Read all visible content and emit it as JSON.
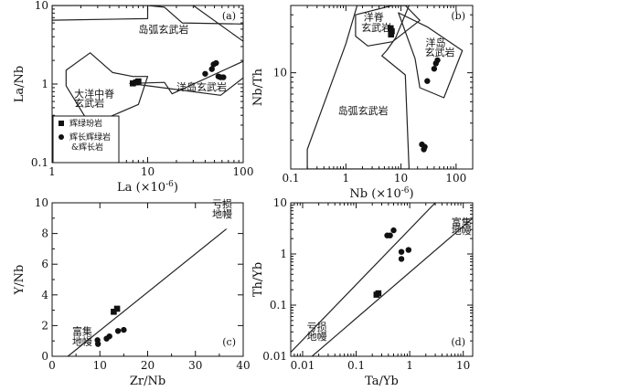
{
  "chart_data": [
    {
      "id": "a",
      "type": "scatter",
      "panel_label": "(a)",
      "xlabel": "La (×10",
      "xlabel_exp": "-6",
      "xlabel_close": ")",
      "ylabel": "La/Nb",
      "xscale": "log",
      "yscale": "log",
      "xlim": [
        1,
        100
      ],
      "ylim": [
        0.1,
        10
      ],
      "xticks": [
        1,
        10,
        100
      ],
      "xtick_labels": [
        "1",
        "10",
        "100"
      ],
      "yticks": [
        0.1,
        1,
        10
      ],
      "ytick_labels": [
        "0.1",
        "1",
        "10"
      ],
      "fields": [
        {
          "label": "岛弧玄武岩",
          "points": [
            [
              1,
              6.5
            ],
            [
              1,
              10
            ],
            [
              30,
              10
            ],
            [
              100,
              3.5
            ],
            [
              100,
              5.8
            ],
            [
              23,
              6
            ],
            [
              15,
              9.5
            ],
            [
              10,
              10
            ],
            [
              10,
              6.8
            ]
          ]
        },
        {
          "label": "大洋中脊玄武岩",
          "points": [
            [
              1.4,
              1.5
            ],
            [
              2.5,
              2.5
            ],
            [
              4.3,
              1.4
            ],
            [
              7,
              1.25
            ],
            [
              10,
              1.25
            ],
            [
              8,
              0.55
            ],
            [
              2.5,
              0.3
            ],
            [
              1.4,
              0.95
            ]
          ]
        },
        {
          "label": "洋岛玄武岩",
          "points": [
            [
              6.5,
              1.02
            ],
            [
              15,
              1.05
            ],
            [
              18,
              0.75
            ],
            [
              100,
              1.95
            ],
            [
              100,
              1.2
            ],
            [
              58,
              0.72
            ],
            [
              10,
              0.95
            ]
          ]
        }
      ],
      "labels": [
        {
          "text": "岛弧玄武岩",
          "at": [
            8,
            4.5
          ]
        },
        {
          "text": "大洋中脊",
          "at": [
            1.7,
            0.68
          ]
        },
        {
          "text": "玄武岩",
          "at": [
            1.7,
            0.52
          ]
        },
        {
          "text": "洋岛玄武岩",
          "at": [
            20,
            0.83
          ]
        }
      ],
      "series": [
        {
          "name": "辉绿玢岩",
          "marker": "square",
          "points": [
            [
              7,
              1.02
            ],
            [
              7.6,
              1.05
            ],
            [
              8,
              1.08
            ]
          ]
        },
        {
          "name": "辉长辉绿岩&辉长岩",
          "marker": "circle",
          "points": [
            [
              40,
              1.35
            ],
            [
              47,
              1.55
            ],
            [
              49,
              1.78
            ],
            [
              52,
              1.85
            ],
            [
              55,
              1.25
            ],
            [
              58,
              1.22
            ],
            [
              62,
              1.22
            ]
          ]
        }
      ],
      "legend": {
        "entries": [
          {
            "marker": "square",
            "lines": [
              "辉绿玢岩"
            ]
          },
          {
            "marker": "circle",
            "lines": [
              "辉长辉绿岩",
              "&辉长岩"
            ]
          }
        ]
      }
    },
    {
      "id": "b",
      "type": "scatter",
      "panel_label": "(b)",
      "xlabel": "Nb (×10",
      "xlabel_exp": "-6",
      "xlabel_close": ")",
      "ylabel": "Nb/Th",
      "xscale": "log",
      "yscale": "log",
      "xlim": [
        0.1,
        200
      ],
      "ylim": [
        1,
        50
      ],
      "xticks": [
        0.1,
        1,
        10,
        100
      ],
      "xtick_labels": [
        "0.1",
        "1",
        "10",
        "100"
      ],
      "yticks": [
        10
      ],
      "ytick_labels": [
        "10"
      ],
      "fields": [
        {
          "label": "岛弧玄武岩",
          "points": [
            [
              0.2,
              1
            ],
            [
              0.2,
              1.6
            ],
            [
              1,
              20
            ],
            [
              1.6,
              50
            ],
            [
              14,
              50
            ],
            [
              8,
              23
            ],
            [
              5.5,
              17
            ],
            [
              4.5,
              15
            ],
            [
              12,
              9.5
            ],
            [
              14,
              1
            ]
          ]
        },
        {
          "label": "洋脊玄武岩",
          "points": [
            [
              1.5,
              40
            ],
            [
              7,
              50
            ],
            [
              12,
              50
            ],
            [
              22,
              35
            ],
            [
              7,
              21
            ],
            [
              2.5,
              19
            ],
            [
              1.5,
              24
            ]
          ]
        },
        {
          "label": "洋岛玄武岩",
          "points": [
            [
              9,
              42
            ],
            [
              30,
              30
            ],
            [
              130,
              17
            ],
            [
              60,
              5.5
            ],
            [
              22,
              7
            ],
            [
              18,
              14
            ]
          ]
        }
      ],
      "labels": [
        {
          "text": "洋脊",
          "at": [
            2.1,
            35
          ]
        },
        {
          "text": "玄武岩",
          "at": [
            1.9,
            27
          ]
        },
        {
          "text": "洋岛",
          "at": [
            28,
            19
          ]
        },
        {
          "text": "玄武岩",
          "at": [
            27,
            15
          ]
        },
        {
          "text": "岛弧玄武岩",
          "at": [
            0.72,
            3.7
          ]
        }
      ],
      "series": [
        {
          "name": "辉绿玢岩",
          "marker": "square",
          "points": [
            [
              6.5,
              29
            ],
            [
              6.8,
              27
            ],
            [
              6.6,
              25
            ]
          ]
        },
        {
          "name": "辉长辉绿岩&辉长岩",
          "marker": "circle",
          "points": [
            [
              30,
              8.2
            ],
            [
              40,
              11
            ],
            [
              43,
              12.5
            ],
            [
              46,
              13.5
            ],
            [
              24,
              1.8
            ],
            [
              27,
              1.7
            ],
            [
              26,
              1.6
            ]
          ]
        }
      ]
    },
    {
      "id": "c",
      "type": "scatter",
      "panel_label": "(c)",
      "xlabel": "Zr/Nb",
      "ylabel": "Y/Nb",
      "xscale": "linear",
      "yscale": "linear",
      "xlim": [
        0,
        40
      ],
      "ylim": [
        0,
        10
      ],
      "xticks": [
        0,
        10,
        20,
        30,
        40
      ],
      "xtick_labels": [
        "0",
        "10",
        "20",
        "30",
        "40"
      ],
      "yticks": [
        0,
        2,
        4,
        6,
        8,
        10
      ],
      "ytick_labels": [
        "0",
        "2",
        "4",
        "6",
        "8",
        "10"
      ],
      "lines": [
        [
          [
            3.3,
            0
          ],
          [
            36.5,
            8.3
          ]
        ]
      ],
      "labels": [
        {
          "text": "亏损",
          "at": [
            33.5,
            9.7
          ]
        },
        {
          "text": "地幔",
          "at": [
            33.5,
            9.05
          ]
        },
        {
          "text": "富集",
          "at": [
            4.2,
            1.4
          ]
        },
        {
          "text": "地幔",
          "at": [
            4.2,
            0.75
          ]
        }
      ],
      "series": [
        {
          "name": "辉绿玢岩",
          "marker": "square",
          "points": [
            [
              12.9,
              2.9
            ],
            [
              13.6,
              3.1
            ]
          ]
        },
        {
          "name": "辉长辉绿岩&辉长岩",
          "marker": "circle",
          "points": [
            [
              9.5,
              1.05
            ],
            [
              9.6,
              0.8
            ],
            [
              11.4,
              1.15
            ],
            [
              12,
              1.3
            ],
            [
              13.8,
              1.65
            ],
            [
              15,
              1.72
            ]
          ]
        }
      ]
    },
    {
      "id": "d",
      "type": "scatter",
      "panel_label": "(d)",
      "xlabel": "Ta/Yb",
      "ylabel": "Th/Yb",
      "xscale": "log",
      "yscale": "log",
      "xlim": [
        0.006,
        15
      ],
      "ylim": [
        0.01,
        10
      ],
      "xticks": [
        0.01,
        0.1,
        1,
        10
      ],
      "xtick_labels": [
        "0.01",
        "0.1",
        "1",
        "10"
      ],
      "yticks": [
        0.01,
        0.1,
        1,
        10
      ],
      "ytick_labels": [
        "0.01",
        "0.1",
        "1",
        "10"
      ],
      "lines": [
        [
          [
            0.006,
            0.012
          ],
          [
            3,
            10
          ]
        ],
        [
          [
            0.015,
            0.01
          ],
          [
            15,
            5
          ]
        ]
      ],
      "labels": [
        {
          "text": "富集",
          "at": [
            6.0,
            3.6
          ]
        },
        {
          "text": "地幔",
          "at": [
            6.0,
            2.45
          ]
        },
        {
          "text": "亏损",
          "at": [
            0.012,
            0.032
          ]
        },
        {
          "text": "地幔",
          "at": [
            0.012,
            0.021
          ]
        }
      ],
      "series": [
        {
          "name": "辉绿玢岩",
          "marker": "square",
          "points": [
            [
              0.24,
              0.16
            ],
            [
              0.26,
              0.17
            ]
          ]
        },
        {
          "name": "辉长辉绿岩&辉长岩",
          "marker": "circle",
          "points": [
            [
              0.38,
              2.3
            ],
            [
              0.43,
              2.3
            ],
            [
              0.5,
              2.9
            ],
            [
              0.7,
              1.1
            ],
            [
              0.95,
              1.2
            ],
            [
              0.7,
              0.8
            ]
          ]
        }
      ]
    }
  ]
}
